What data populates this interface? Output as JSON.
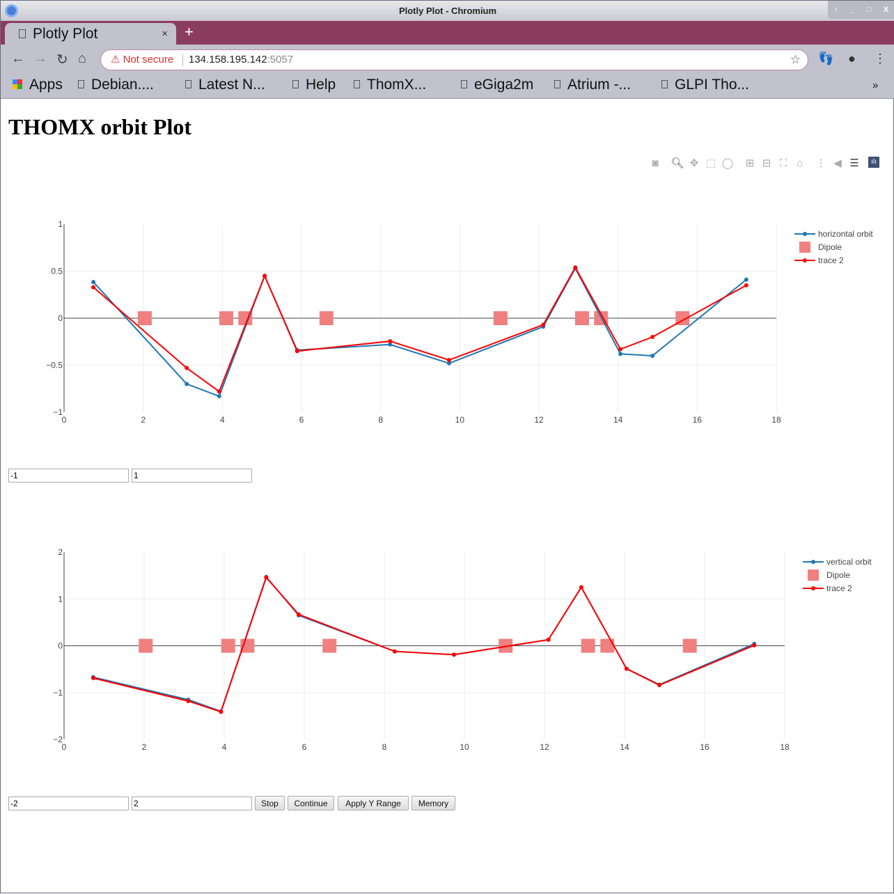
{
  "window": {
    "title": "Plotly Plot - Chromium"
  },
  "tab": {
    "label": "Plotly Plot",
    "close": "×",
    "new_tab": "+"
  },
  "address": {
    "security": "Not secure",
    "host": "134.158.195.142",
    "port": ":5057"
  },
  "bookmarks": [
    "Apps",
    "Debian....",
    "Latest N...",
    "Help",
    "ThomX...",
    "eGiga2m",
    "Atrium -...",
    "GLPI Tho..."
  ],
  "bookmarks_more": "»",
  "page": {
    "title": "THOMX orbit Plot"
  },
  "modebar": [
    "camera-icon",
    "zoom-icon",
    "pan-icon",
    "box-select-icon",
    "lasso-icon",
    "zoom-in-icon",
    "zoom-out-icon",
    "autoscale-icon",
    "home-icon",
    "spike-lines-icon",
    "hover-closest-icon",
    "hover-compare-icon",
    "plotly-logo-icon"
  ],
  "colors": {
    "blue": "#1f77b4",
    "red": "#ff0000",
    "dipole": "#f08080"
  },
  "controls1": {
    "ymin": "-1",
    "ymax": "1"
  },
  "controls2": {
    "ymin": "-2",
    "ymax": "2",
    "stop": "Stop",
    "continue": "Continue",
    "apply": "Apply Y Range",
    "memory": "Memory"
  },
  "chart_data": [
    {
      "type": "line",
      "xlim": [
        0,
        18
      ],
      "ylim": [
        -1,
        1
      ],
      "xticks": [
        "0",
        "2",
        "4",
        "6",
        "8",
        "10",
        "12",
        "14",
        "16",
        "18"
      ],
      "yticks": [
        "1",
        "0.5",
        "0",
        "−0.5",
        "−1"
      ],
      "legend_position": "top-right",
      "series": [
        {
          "name": "horizontal orbit",
          "mode": "lines+markers",
          "color": "#1f77b4",
          "x": [
            0.74,
            3.1,
            3.92,
            5.07,
            5.89,
            8.24,
            9.73,
            12.11,
            12.92,
            14.06,
            14.87,
            17.24
          ],
          "y": [
            0.385,
            -0.7,
            -0.83,
            0.45,
            -0.34,
            -0.28,
            -0.48,
            -0.09,
            0.53,
            -0.38,
            -0.4,
            0.41
          ]
        },
        {
          "name": "Dipole",
          "mode": "markers",
          "color": "#f08080",
          "x": [
            2.04,
            4.1,
            4.58,
            6.63,
            11.03,
            13.09,
            13.57,
            15.63
          ],
          "y": [
            0,
            0,
            0,
            0,
            0,
            0,
            0,
            0
          ]
        },
        {
          "name": "trace 2",
          "mode": "lines+markers",
          "color": "#ff0000",
          "x": [
            0.74,
            3.1,
            3.92,
            5.07,
            5.89,
            8.24,
            9.73,
            12.11,
            12.92,
            14.06,
            14.87,
            17.24
          ],
          "y": [
            0.33,
            -0.53,
            -0.78,
            0.45,
            -0.35,
            -0.245,
            -0.445,
            -0.07,
            0.54,
            -0.33,
            -0.2,
            0.35
          ]
        }
      ]
    },
    {
      "type": "line",
      "xlim": [
        0,
        18
      ],
      "ylim": [
        -2,
        2
      ],
      "xticks": [
        "0",
        "2",
        "4",
        "6",
        "8",
        "10",
        "12",
        "14",
        "16",
        "18"
      ],
      "yticks": [
        "2",
        "1",
        "0",
        "−1",
        "−2"
      ],
      "legend_position": "top-right",
      "series": [
        {
          "name": "vertical orbit",
          "mode": "lines+markers",
          "color": "#1f77b4",
          "x": [
            0.73,
            3.1,
            3.92,
            5.05,
            5.86,
            8.26,
            9.74,
            12.1,
            12.92,
            14.05,
            14.87,
            17.24
          ],
          "y": [
            -0.67,
            -1.15,
            -1.4,
            1.47,
            0.65,
            -0.12,
            -0.19,
            0.13,
            1.25,
            -0.49,
            -0.83,
            0.04
          ]
        },
        {
          "name": "Dipole",
          "mode": "markers",
          "color": "#f08080",
          "x": [
            2.04,
            4.1,
            4.58,
            6.63,
            11.03,
            13.09,
            13.57,
            15.63
          ],
          "y": [
            0,
            0,
            0,
            0,
            0,
            0,
            0,
            0
          ]
        },
        {
          "name": "trace 2",
          "mode": "lines+markers",
          "color": "#ff0000",
          "x": [
            0.73,
            3.1,
            3.92,
            5.05,
            5.86,
            8.26,
            9.74,
            12.1,
            12.92,
            14.05,
            14.87,
            17.24
          ],
          "y": [
            -0.69,
            -1.18,
            -1.41,
            1.46,
            0.67,
            -0.12,
            -0.19,
            0.13,
            1.25,
            -0.49,
            -0.84,
            0.01
          ]
        }
      ]
    }
  ]
}
